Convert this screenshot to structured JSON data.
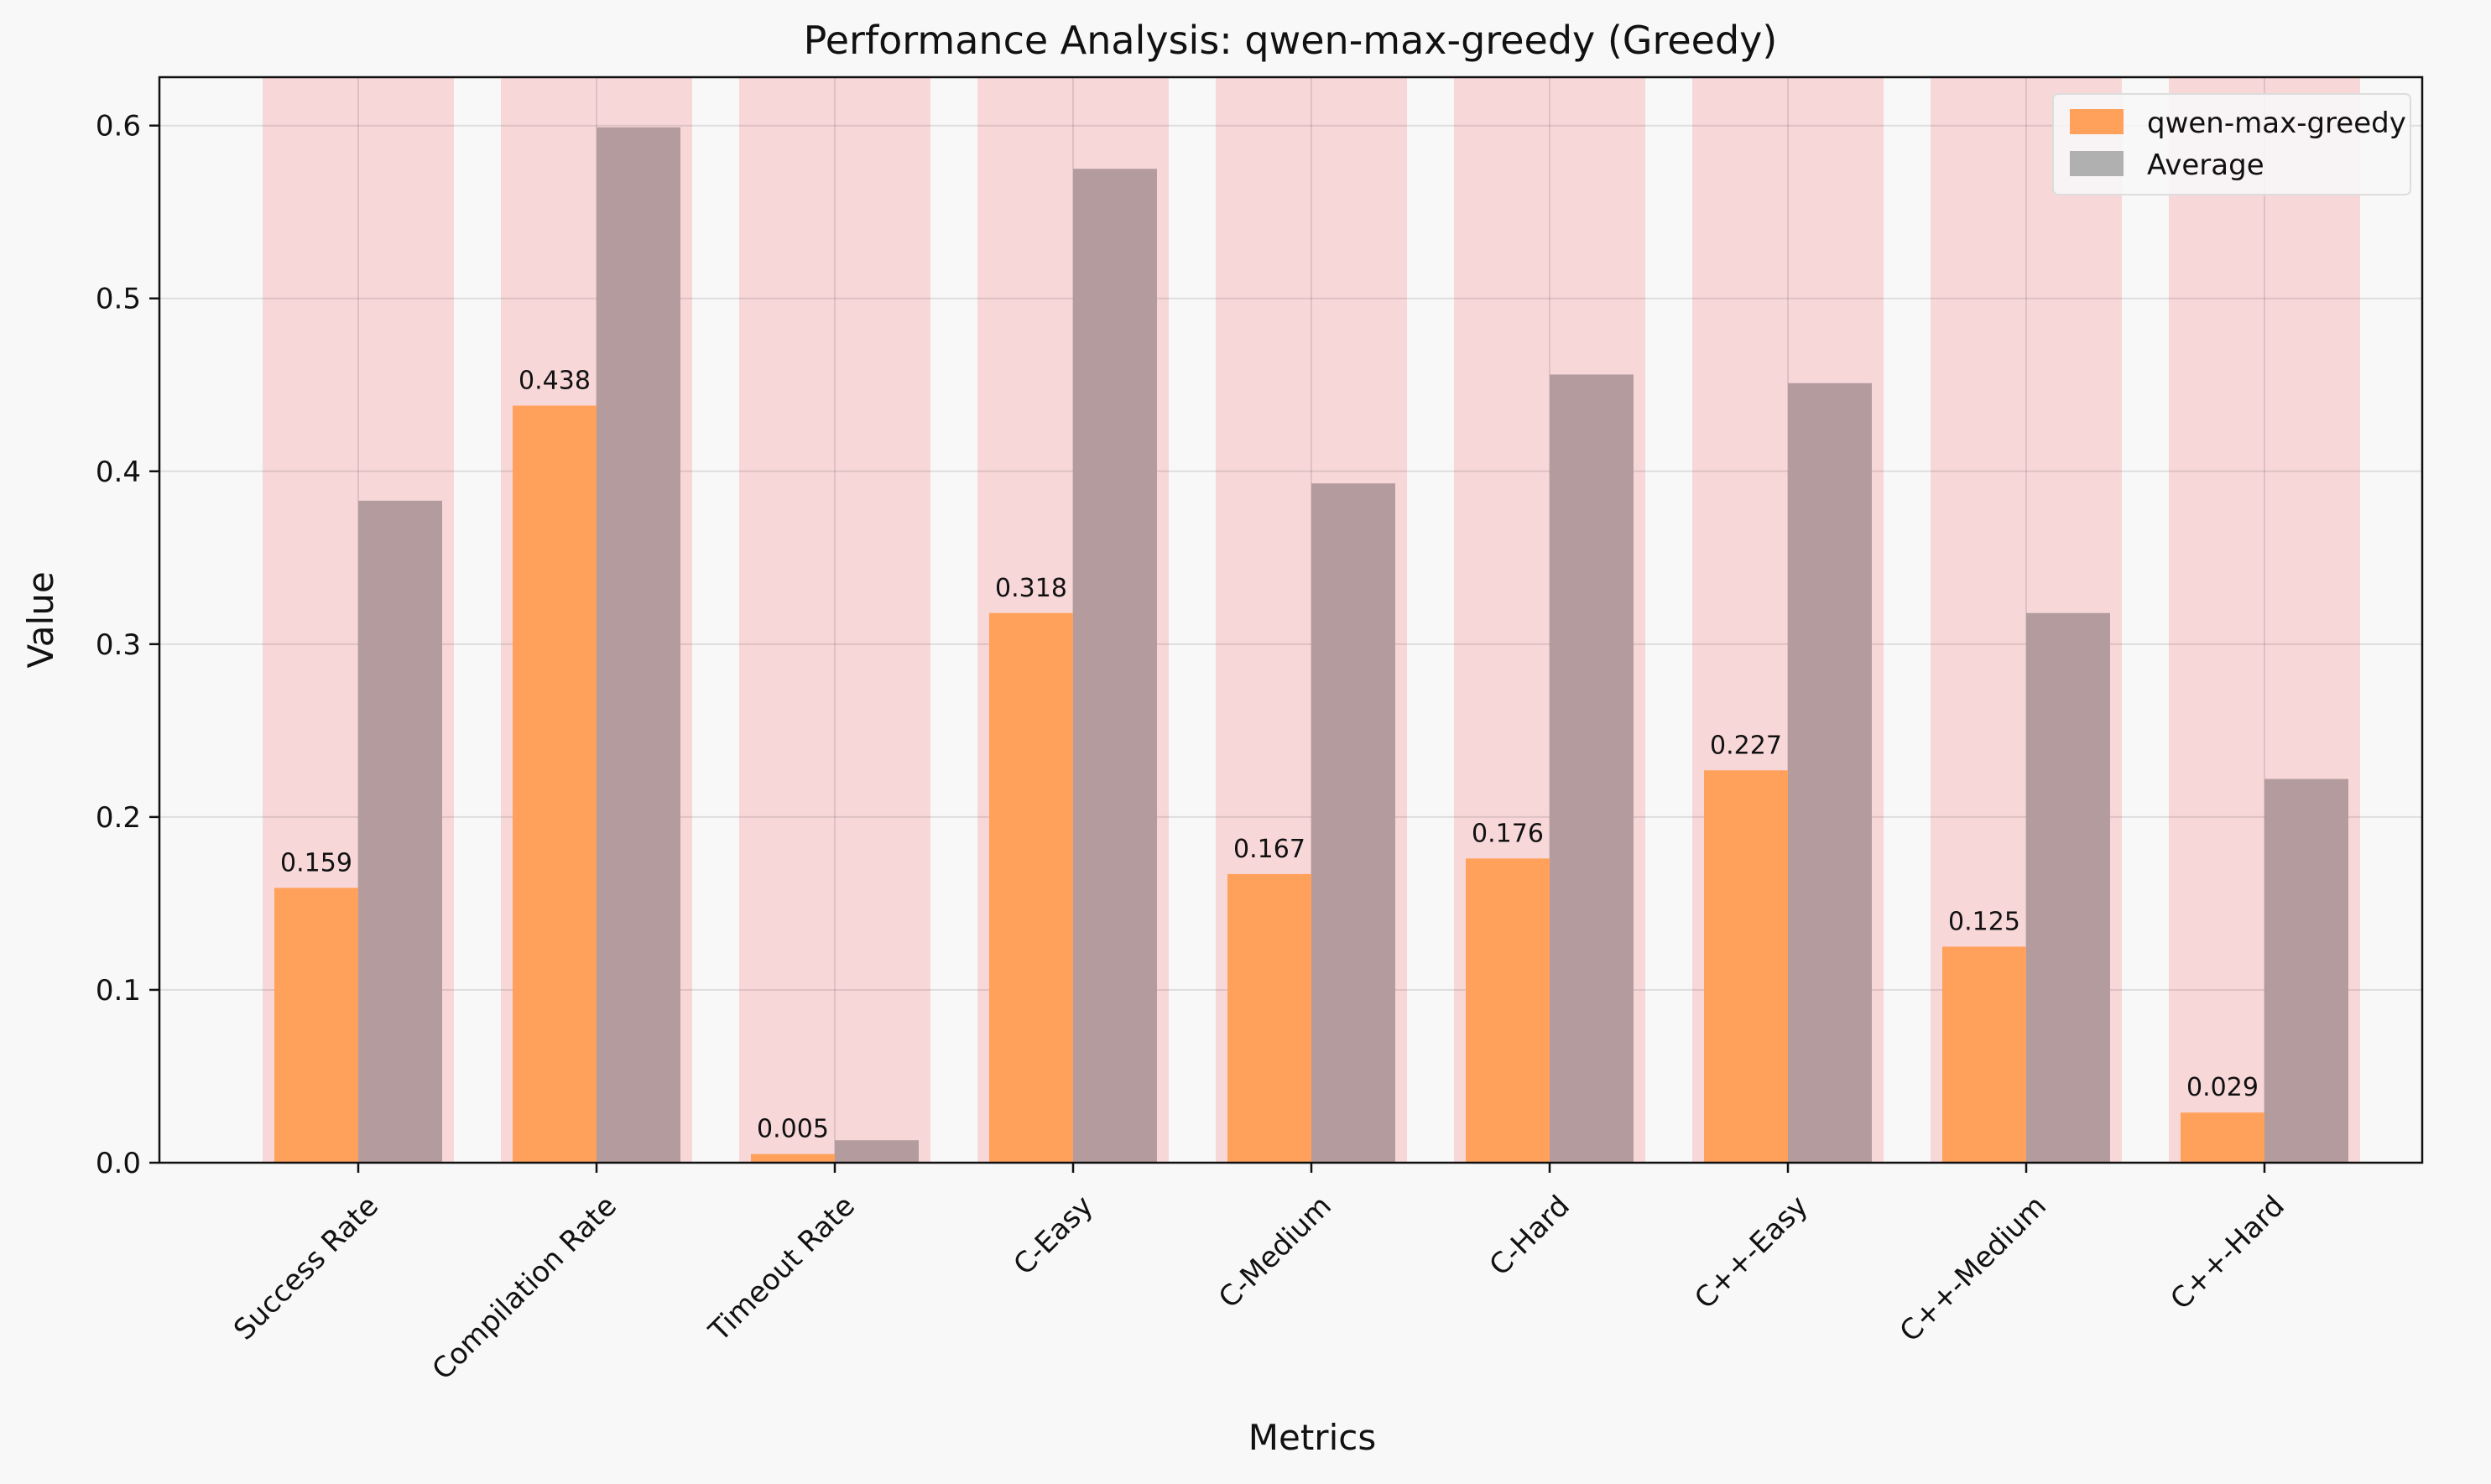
{
  "chart_data": {
    "type": "bar",
    "title": "Performance Analysis: qwen-max-greedy (Greedy)",
    "xlabel": "Metrics",
    "ylabel": "Value",
    "ylim": [
      0,
      0.628
    ],
    "yticks": [
      0.0,
      0.1,
      0.2,
      0.3,
      0.4,
      0.5,
      0.6
    ],
    "grid": true,
    "legend_position": "top-right",
    "categories": [
      "Success Rate",
      "Compilation Rate",
      "Timeout Rate",
      "C-Easy",
      "C-Medium",
      "C-Hard",
      "C++-Easy",
      "C++-Medium",
      "C++-Hard"
    ],
    "series": [
      {
        "name": "qwen-max-greedy",
        "color": "#ffa15a",
        "values": [
          0.159,
          0.438,
          0.005,
          0.318,
          0.167,
          0.176,
          0.227,
          0.125,
          0.029
        ],
        "labeled": true
      },
      {
        "name": "Average",
        "color": "#b49c9e",
        "legend_color": "#b0b0b0",
        "values": [
          0.383,
          0.599,
          0.013,
          0.575,
          0.393,
          0.456,
          0.451,
          0.318,
          0.222
        ],
        "labeled": false
      }
    ],
    "highlight_color": "#f8d7d9",
    "label_decimals": 3
  }
}
